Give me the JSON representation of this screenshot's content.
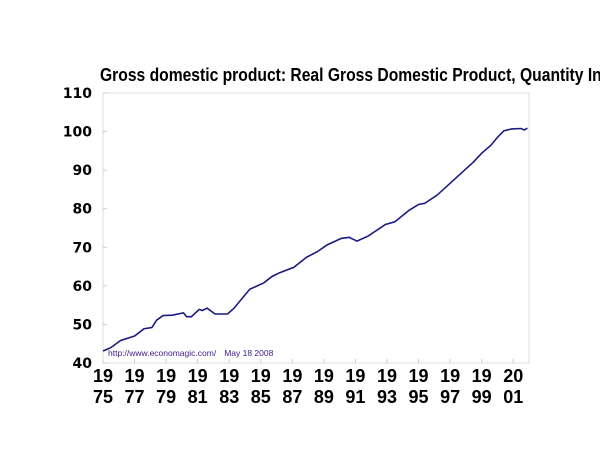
{
  "chart_data": {
    "type": "line",
    "title": "Gross domestic product: Real Gross Domestic Product, Quantity Inde",
    "xlabel": "",
    "ylabel": "",
    "ylim": [
      40,
      110
    ],
    "xlim": [
      1975,
      2002
    ],
    "yticks": [
      40,
      50,
      60,
      70,
      80,
      90,
      100,
      110
    ],
    "xticks": [
      {
        "year": 1975,
        "top": "19",
        "bottom": "75"
      },
      {
        "year": 1977,
        "top": "19",
        "bottom": "77"
      },
      {
        "year": 1979,
        "top": "19",
        "bottom": "79"
      },
      {
        "year": 1981,
        "top": "19",
        "bottom": "81"
      },
      {
        "year": 1983,
        "top": "19",
        "bottom": "83"
      },
      {
        "year": 1985,
        "top": "19",
        "bottom": "85"
      },
      {
        "year": 1987,
        "top": "19",
        "bottom": "87"
      },
      {
        "year": 1989,
        "top": "19",
        "bottom": "89"
      },
      {
        "year": 1991,
        "top": "19",
        "bottom": "91"
      },
      {
        "year": 1993,
        "top": "19",
        "bottom": "93"
      },
      {
        "year": 1995,
        "top": "19",
        "bottom": "95"
      },
      {
        "year": 1997,
        "top": "19",
        "bottom": "97"
      },
      {
        "year": 1999,
        "top": "19",
        "bottom": "99"
      },
      {
        "year": 2001,
        "top": "20",
        "bottom": "01"
      }
    ],
    "grid": false,
    "line_color": "#1a1a80",
    "series": [
      {
        "x": [
          1975.0,
          1975.5,
          1976.1,
          1977.0,
          1977.6,
          1978.1,
          1978.4,
          1978.8,
          1979.4,
          1980.1,
          1980.3,
          1980.6,
          1981.1,
          1981.3,
          1981.6,
          1982.1,
          1982.9,
          1983.3,
          1984.3,
          1985.2,
          1985.7,
          1986.2,
          1987.1,
          1987.9,
          1988.6,
          1989.2,
          1990.1,
          1990.6,
          1991.1,
          1991.8,
          1992.9,
          1993.5,
          1994.4,
          1995.0,
          1995.4,
          1996.2,
          1997.0,
          1997.7,
          1998.5,
          1999.0,
          1999.6,
          2000.0,
          2000.4,
          2000.9,
          2001.5,
          2001.7,
          2001.9
        ],
        "y": [
          43.1,
          44.0,
          45.8,
          47.0,
          48.9,
          49.2,
          51.1,
          52.3,
          52.4,
          53.0,
          52.0,
          52.0,
          53.9,
          53.6,
          54.2,
          52.7,
          52.7,
          54.2,
          59.1,
          60.8,
          62.4,
          63.4,
          64.8,
          67.4,
          68.9,
          70.6,
          72.3,
          72.6,
          71.6,
          72.9,
          75.9,
          76.6,
          79.6,
          81.1,
          81.4,
          83.6,
          86.6,
          89.2,
          92.2,
          94.4,
          96.5,
          98.5,
          100.2,
          100.7,
          100.8,
          100.4,
          100.9
        ]
      }
    ],
    "annotation": {
      "source": "http://www.economagic.com/",
      "date": "May 18 2008"
    }
  }
}
